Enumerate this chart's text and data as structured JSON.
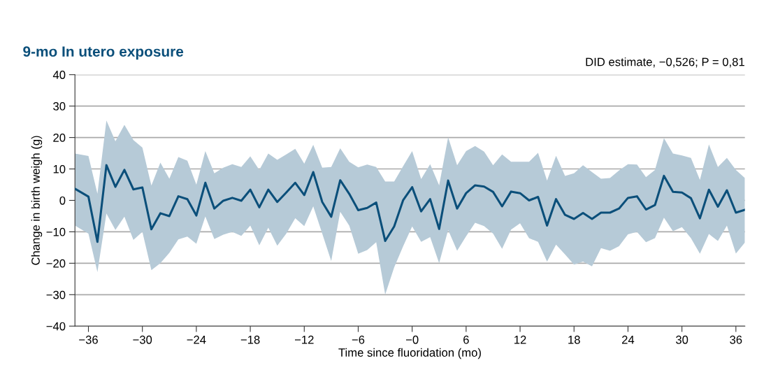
{
  "chart_data": {
    "type": "line",
    "title": "9-mo In utero exposure",
    "xlabel": "Time since fluoridation (mo)",
    "ylabel": "Change in birth weigh (g)",
    "annotations": [
      "DID estimate, −0,526; P = 0,81"
    ],
    "x": [
      -37.5,
      -36,
      -35,
      -34,
      -33,
      -32,
      -31,
      -30,
      -29,
      -28,
      -27,
      -26,
      -25,
      -24,
      -23,
      -22,
      -21,
      -20,
      -19,
      -18,
      -17,
      -16,
      -15,
      -14,
      -13,
      -12,
      -11,
      -10,
      -9,
      -8,
      -7,
      -6,
      -5,
      -4,
      -3,
      -2,
      -1,
      0,
      1,
      2,
      3,
      4,
      5,
      6,
      7,
      8,
      9,
      10,
      11,
      12,
      13,
      14,
      15,
      16,
      17,
      18,
      19,
      20,
      21,
      22,
      23,
      24,
      25,
      26,
      27,
      28,
      29,
      30,
      31,
      32,
      33,
      34,
      35,
      36,
      37
    ],
    "series": [
      {
        "color": "#0b4f7a",
        "values": [
          3.7,
          1.2,
          -13.2,
          11.2,
          4.3,
          9.7,
          3.5,
          4.1,
          -9.2,
          -4.1,
          -5,
          1.3,
          0.4,
          -4.8,
          5.6,
          -2.6,
          -0.1,
          0.8,
          -0.1,
          3.4,
          -2.2,
          3.4,
          -0.5,
          2.5,
          5.6,
          1.7,
          9,
          -0.5,
          -5.2,
          6.4,
          2.1,
          -3.1,
          -2.4,
          -0.7,
          -12.9,
          -8.3,
          0.1,
          4.2,
          -3.5,
          0.4,
          -9.1,
          6.3,
          -2.6,
          2.3,
          4.8,
          4.4,
          2.7,
          -1.9,
          2.8,
          2.3,
          0,
          1.1,
          -8,
          0.4,
          -4.6,
          -5.9,
          -4,
          -5.9,
          -3.9,
          -3.9,
          -2.6,
          0.8,
          1.3,
          -2.9,
          -1.5,
          7.8,
          2.7,
          2.5,
          0.7,
          -5.7,
          3.4,
          -2,
          3.2,
          -3.9,
          -3
        ],
        "upper": [
          14.9,
          14.1,
          2.1,
          25.4,
          18.8,
          24,
          19.2,
          16.8,
          4.7,
          12,
          6.9,
          13.8,
          12.6,
          5,
          15.7,
          8.6,
          10.4,
          11.5,
          10.6,
          14,
          9.7,
          14.9,
          12.9,
          14.6,
          16.4,
          11.7,
          17.7,
          10.4,
          10.6,
          16.6,
          12.3,
          10.5,
          11.4,
          10.6,
          6,
          6,
          10.9,
          15.7,
          6.8,
          11.5,
          4.8,
          20.1,
          11.2,
          15.7,
          17.3,
          15.5,
          11.2,
          14.6,
          12.3,
          12.3,
          12.3,
          15.1,
          6.3,
          14.2,
          7.8,
          8.6,
          11.2,
          9,
          6.9,
          7.1,
          9.5,
          11.5,
          11.4,
          7.4,
          9.7,
          19.8,
          14.9,
          14.3,
          13.5,
          6.5,
          17.8,
          10.6,
          13.5,
          9.7,
          7.1
        ],
        "lower": [
          -8,
          -10.6,
          -22.8,
          -4.2,
          -9.4,
          -5.2,
          -12.6,
          -10,
          -22.2,
          -20,
          -16.7,
          -12.4,
          -11.5,
          -13.8,
          -5.1,
          -12.3,
          -10.9,
          -10,
          -11.3,
          -8,
          -14.3,
          -8.7,
          -14.4,
          -10.6,
          -5.7,
          -8.2,
          -1.9,
          -10.6,
          -19.3,
          -3.6,
          -8,
          -17,
          -15.8,
          -13.3,
          -30,
          -21.3,
          -14.6,
          -8.3,
          -13.2,
          -11.7,
          -20,
          -9.4,
          -16,
          -11.4,
          -7.1,
          -8.2,
          -10.6,
          -15.4,
          -9.3,
          -7.3,
          -12,
          -13.2,
          -19.5,
          -14.1,
          -17.2,
          -20.4,
          -19.5,
          -21,
          -15.2,
          -16,
          -14.6,
          -10.8,
          -10,
          -13.3,
          -12,
          -5.5,
          -9.8,
          -8.5,
          -12,
          -17,
          -10.7,
          -12.9,
          -8,
          -16.9,
          -13.4
        ]
      }
    ],
    "xlim": [
      -37.5,
      37
    ],
    "xticks": [
      {
        "value": -36,
        "label": "−36"
      },
      {
        "value": -30,
        "label": "−30"
      },
      {
        "value": -24,
        "label": "−24"
      },
      {
        "value": -18,
        "label": "−18"
      },
      {
        "value": -12,
        "label": "−12"
      },
      {
        "value": -6,
        "label": "−6"
      },
      {
        "value": 0,
        "label": "−0"
      },
      6,
      12,
      18,
      24,
      30,
      36
    ],
    "ylim": [
      -40,
      40
    ],
    "yticks": [
      {
        "value": -40,
        "label": "−40"
      },
      {
        "value": -30,
        "label": "−30"
      },
      {
        "value": -20,
        "label": "−20"
      },
      {
        "value": -10,
        "label": "−10"
      },
      0,
      10,
      20,
      30,
      40
    ],
    "grid": "y",
    "marker": "none",
    "line_style": "solid"
  }
}
